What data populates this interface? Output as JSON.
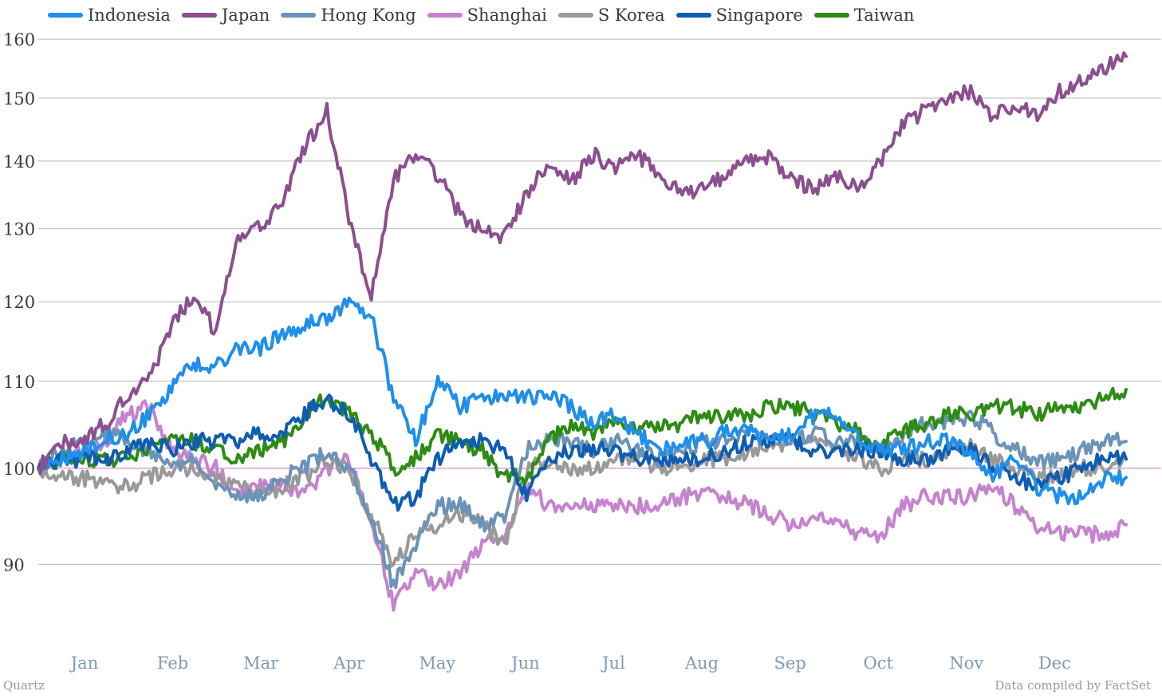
{
  "source_left": "Quartz",
  "source_right": "Data compiled by FactSet",
  "chart_data": {
    "type": "line",
    "title": "",
    "xlabel": "",
    "ylabel": "",
    "y_scale": "log",
    "ylim": [
      83,
      161
    ],
    "yticks": [
      90,
      100,
      110,
      120,
      130,
      140,
      150,
      160
    ],
    "reference_line": 100,
    "grid": true,
    "legend_position": "top-left",
    "month_labels": [
      "Jan",
      "Feb",
      "Mar",
      "Apr",
      "May",
      "Jun",
      "Jul",
      "Aug",
      "Sep",
      "Oct",
      "Nov",
      "Dec"
    ],
    "x": [
      0,
      0.5,
      1,
      1.5,
      2,
      2.5,
      3,
      3.5,
      4,
      4.5,
      5,
      5.5,
      6,
      6.5,
      7,
      7.5,
      8,
      8.5,
      9,
      9.5,
      10,
      10.5,
      11,
      11.5,
      12
    ],
    "series": [
      {
        "name": "Indonesia",
        "color": "#1f8fea",
        "values": [
          100,
          101,
          102,
          103,
          104,
          106,
          109,
          112,
          112,
          114,
          114,
          116,
          117,
          118,
          120,
          118,
          108,
          103,
          110,
          107,
          108,
          108,
          108,
          108,
          107
        ]
      },
      {
        "name": "Japan",
        "color": "#8b4f8f",
        "values": [
          100,
          103,
          103,
          105,
          108,
          110,
          117,
          121,
          116,
          129,
          130,
          134,
          142,
          148,
          131,
          121,
          137,
          141,
          138,
          132,
          130,
          129,
          135,
          140,
          137
        ]
      },
      {
        "name": "Hong Kong",
        "color": "#6b93b7",
        "values": [
          100,
          102,
          103,
          104,
          103,
          102,
          100,
          101,
          98,
          97,
          97,
          99,
          100,
          102,
          100,
          95,
          88,
          92,
          96,
          96,
          94,
          95,
          102,
          103,
          103
        ]
      },
      {
        "name": "Shanghai",
        "color": "#c583cf",
        "values": [
          100,
          101,
          102,
          103,
          106,
          107,
          102,
          101,
          100,
          97,
          98,
          98,
          97,
          100,
          101,
          94,
          86,
          89,
          88,
          89,
          92,
          93,
          98,
          96,
          96
        ]
      },
      {
        "name": "S Korea",
        "color": "#999999",
        "values": [
          100,
          99,
          99,
          98,
          98,
          99,
          100,
          100,
          99,
          98,
          97,
          98,
          99,
          101,
          100,
          95,
          90,
          93,
          94,
          95,
          94,
          92,
          100,
          101,
          100
        ]
      },
      {
        "name": "Singapore",
        "color": "#0f5db0",
        "values": [
          100,
          101,
          101,
          101,
          102,
          103,
          102,
          103,
          103,
          103,
          104,
          104,
          106,
          108,
          106,
          101,
          96,
          97,
          101,
          103,
          103,
          102,
          97,
          101,
          102
        ]
      },
      {
        "name": "Taiwan",
        "color": "#2e8b14",
        "values": [
          100,
          101,
          101,
          101,
          101,
          102,
          103,
          103,
          102,
          101,
          102,
          103,
          106,
          108,
          106,
          104,
          100,
          101,
          104,
          103,
          102,
          99,
          99,
          103,
          105
        ]
      }
    ],
    "tail_x": [
      12.5,
      13,
      13.5,
      14,
      14.5,
      15,
      15.5,
      16,
      16.5,
      17,
      17.5,
      18,
      18.5,
      19,
      19.5,
      20,
      20.5,
      21,
      21.5,
      22,
      22.5,
      23,
      23.5,
      24,
      24.5
    ],
    "tail": {
      "Indonesia": [
        105,
        106,
        104,
        102,
        103,
        103,
        104,
        104,
        103,
        104,
        106,
        106,
        103,
        102,
        102,
        103,
        103,
        102,
        99,
        101,
        98,
        97,
        97,
        99,
        99
      ],
      "Japan": [
        141,
        139,
        141,
        138,
        135,
        136,
        138,
        140,
        141,
        137,
        136,
        138,
        136,
        140,
        146,
        148,
        150,
        151,
        147,
        149,
        147,
        151,
        153,
        155,
        157
      ],
      "Hong Kong": [
        102,
        103,
        102,
        101,
        102,
        103,
        103,
        104,
        103,
        103,
        104,
        103,
        103,
        102,
        104,
        105,
        105,
        106,
        104,
        102,
        101,
        101,
        102,
        103,
        103
      ],
      "Shanghai": [
        96,
        96,
        96,
        96,
        97,
        97,
        97,
        96,
        95,
        94,
        95,
        94,
        93,
        93,
        96,
        97,
        97,
        97,
        98,
        96,
        94,
        93,
        93,
        93,
        94
      ],
      "S Korea": [
        100,
        101,
        101,
        100,
        100,
        101,
        101,
        102,
        102,
        103,
        103,
        102,
        101,
        100,
        101,
        101,
        102,
        103,
        101,
        100,
        99,
        99,
        100,
        100,
        101
      ],
      "Singapore": [
        102,
        102,
        101,
        101,
        101,
        101,
        102,
        103,
        103,
        103,
        102,
        102,
        102,
        102,
        101,
        101,
        102,
        102,
        100,
        99,
        98,
        99,
        100,
        101,
        101
      ],
      "Taiwan": [
        104,
        105,
        104,
        105,
        105,
        106,
        106,
        106,
        107,
        107,
        106,
        105,
        104,
        103,
        104,
        105,
        106,
        106,
        107,
        107,
        106,
        107,
        107,
        108,
        109
      ]
    }
  }
}
